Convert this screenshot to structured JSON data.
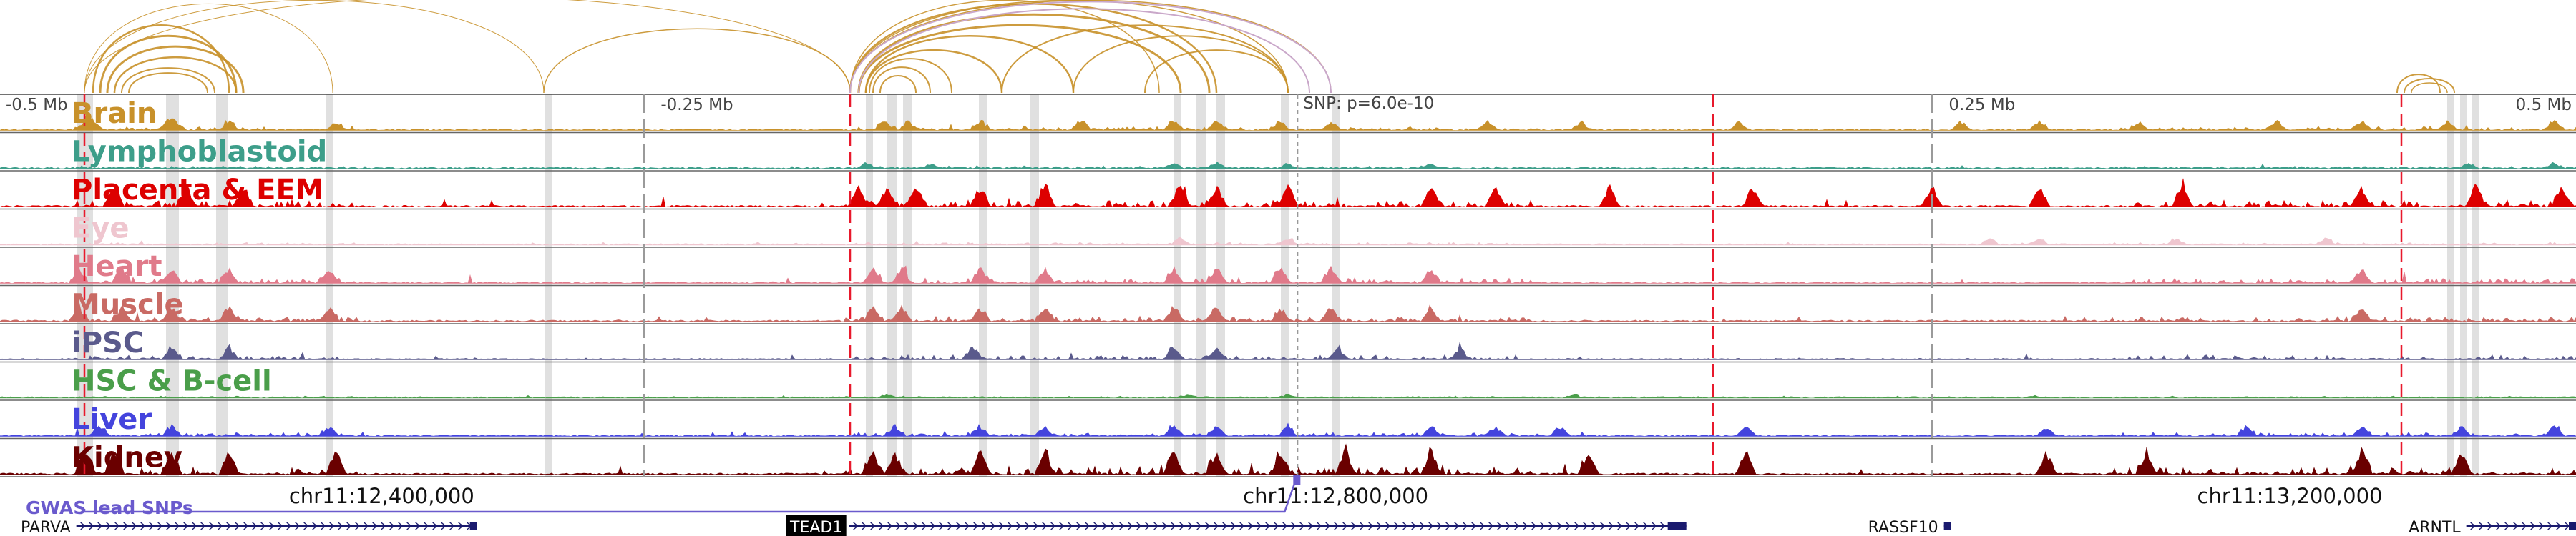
{
  "view": {
    "start": 12240000,
    "end": 13320000,
    "center": 12784000
  },
  "colors": {
    "arc": "#c8912a",
    "arc_alt": "#c9a7c9",
    "border": "#444444",
    "separator": "#666666",
    "grid": "#9a9a9a",
    "highlight": "#d8d8d8",
    "snp_line": "#e8192c",
    "snp_track": "#6a5acd",
    "gene": "#1a1a6e",
    "tead_bg": "#000000"
  },
  "scale": {
    "labels": [
      {
        "pos": 12240000,
        "text": "-0.5 Mb"
      },
      {
        "pos": 12514000,
        "text": "-0.25 Mb"
      },
      {
        "pos": 13054000,
        "text": "0.25 Mb"
      },
      {
        "pos": 13320000,
        "text": "0.5 Mb"
      }
    ],
    "snp_text": "SNP: p=6.0e-10"
  },
  "tracks": [
    {
      "name": "Brain",
      "color": "#c8912a",
      "pale": false
    },
    {
      "name": "Lymphoblastoid",
      "color": "#3d9e8a",
      "pale": false
    },
    {
      "name": "Placenta & EEM",
      "color": "#dd0000",
      "pale": false
    },
    {
      "name": "Eye",
      "color": "#efc6cf",
      "pale": true
    },
    {
      "name": "Heart",
      "color": "#e07a8a",
      "pale": false
    },
    {
      "name": "Muscle",
      "color": "#c96a64",
      "pale": false
    },
    {
      "name": "iPSC",
      "color": "#5a5a8c",
      "pale": false
    },
    {
      "name": "HSC & B-cell",
      "color": "#4a9e4a",
      "pale": false
    },
    {
      "name": "Liver",
      "color": "#4444dd",
      "pale": false
    },
    {
      "name": "Kidney",
      "color": "#6a0000",
      "pale": false
    }
  ],
  "coords": [
    {
      "pos": 12400000,
      "text": "chr11:12,400,000"
    },
    {
      "pos": 12800000,
      "text": "chr11:12,800,000"
    },
    {
      "pos": 13200000,
      "text": "chr11:13,200,000"
    }
  ],
  "snp_track_label": "GWAS lead SNPs",
  "genes": [
    {
      "name": "PARVA",
      "start": 12272000,
      "end": 12440000,
      "boxed": false
    },
    {
      "name": "TEAD1",
      "start": 12596000,
      "end": 12947000,
      "boxed": true
    },
    {
      "name": "RASSF10",
      "start": 13055000,
      "end": 13058000,
      "boxed": false
    },
    {
      "name": "ARNTL",
      "start": 13274000,
      "end": 13320000,
      "boxed": false
    }
  ]
}
